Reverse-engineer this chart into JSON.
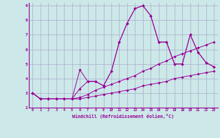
{
  "title": "",
  "xlabel": "Windchill (Refroidissement éolien,°C)",
  "ylabel": "",
  "background_color": "#cce8e8",
  "grid_color": "#aaaacc",
  "line_color": "#990099",
  "marker_color": "#990099",
  "xlim": [
    -0.5,
    23.5
  ],
  "ylim": [
    2,
    9.2
  ],
  "xticks": [
    0,
    1,
    2,
    3,
    4,
    5,
    6,
    7,
    8,
    9,
    10,
    11,
    12,
    13,
    14,
    15,
    16,
    17,
    18,
    19,
    20,
    21,
    22,
    23
  ],
  "yticks": [
    2,
    3,
    4,
    5,
    6,
    7,
    8,
    9
  ],
  "curves": [
    [
      3.0,
      2.6,
      2.6,
      2.6,
      2.6,
      2.6,
      4.6,
      3.8,
      3.8,
      3.5,
      4.5,
      6.5,
      7.8,
      8.8,
      9.0,
      8.3,
      6.5,
      6.5,
      5.0,
      5.0,
      7.0,
      5.8,
      5.1,
      4.8
    ],
    [
      3.0,
      2.6,
      2.6,
      2.6,
      2.6,
      2.6,
      3.3,
      3.8,
      3.8,
      3.5,
      4.5,
      6.5,
      7.8,
      8.8,
      9.0,
      8.3,
      6.5,
      6.5,
      5.0,
      5.0,
      7.0,
      5.8,
      5.1,
      4.8
    ],
    [
      3.0,
      2.6,
      2.6,
      2.6,
      2.6,
      2.6,
      2.7,
      2.9,
      3.2,
      3.4,
      3.6,
      3.8,
      4.0,
      4.2,
      4.5,
      4.7,
      5.0,
      5.2,
      5.5,
      5.7,
      5.9,
      6.1,
      6.3,
      6.5
    ],
    [
      3.0,
      2.6,
      2.6,
      2.6,
      2.6,
      2.6,
      2.6,
      2.7,
      2.8,
      2.9,
      3.0,
      3.1,
      3.2,
      3.3,
      3.5,
      3.6,
      3.7,
      3.8,
      4.0,
      4.1,
      4.2,
      4.3,
      4.4,
      4.5
    ]
  ]
}
